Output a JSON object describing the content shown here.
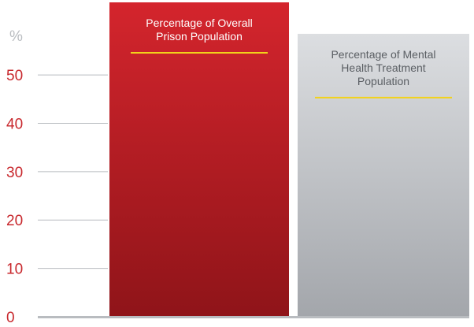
{
  "chart_data": {
    "type": "bar",
    "y_unit": "%",
    "ylim": [
      0,
      65
    ],
    "y_ticks": [
      0,
      10,
      20,
      30,
      40,
      50
    ],
    "categories": [
      "Percentage of Overall Prison Population",
      "Percentage of Mental Health Treatment Population"
    ],
    "values": [
      65,
      58.5
    ],
    "bars": [
      {
        "label_lines": [
          "Percentage of Overall",
          "Prison Population"
        ],
        "value": 65,
        "color_top": "#d4252d",
        "color_bottom": "#8f1419",
        "label_color": "#ffffff",
        "underline_color": "#f2d21b"
      },
      {
        "label_lines": [
          "Percentage of Mental",
          "Health Treatment",
          "Population"
        ],
        "value": 58.5,
        "color_top": "#dcdee1",
        "color_bottom": "#a3a6ab",
        "label_color": "#5a5e63",
        "underline_color": "#f2d21b"
      }
    ],
    "gridlines": true,
    "tick_color": "#c8282d",
    "grid_color": "#b9bcc0"
  }
}
